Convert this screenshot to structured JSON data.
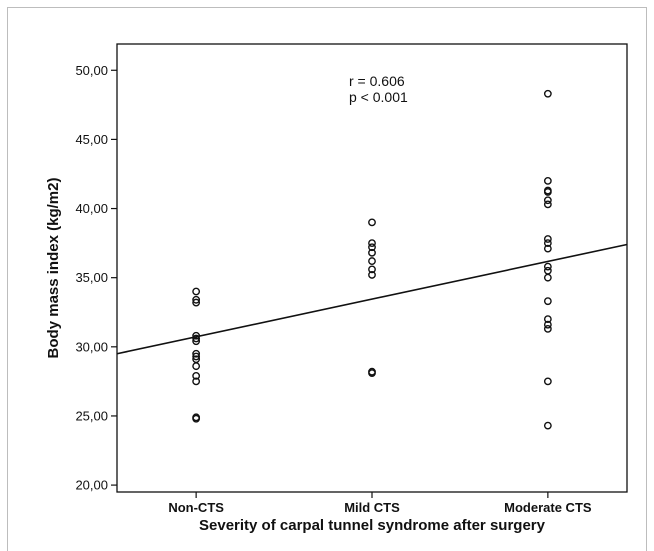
{
  "chart_data": {
    "type": "scatter",
    "xlabel": "Severity of carpal tunnel syndrome after surgery",
    "ylabel": "Body mass index (kg/m2)",
    "categories": [
      "Non-CTS",
      "Mild CTS",
      "Moderate CTS"
    ],
    "yticks": [
      "20,00",
      "25,00",
      "30,00",
      "35,00",
      "40,00",
      "45,00",
      "50,00"
    ],
    "ylim": [
      19.5,
      51.9
    ],
    "xlim": [
      0.55,
      3.45
    ],
    "grid": false,
    "annotations": [
      "r = 0.606",
      "p < 0.001"
    ],
    "points": [
      {
        "category": "Non-CTS",
        "x": 1,
        "y": 34.0
      },
      {
        "category": "Non-CTS",
        "x": 1,
        "y": 33.4
      },
      {
        "category": "Non-CTS",
        "x": 1,
        "y": 33.2
      },
      {
        "category": "Non-CTS",
        "x": 1,
        "y": 30.8
      },
      {
        "category": "Non-CTS",
        "x": 1,
        "y": 30.6
      },
      {
        "category": "Non-CTS",
        "x": 1,
        "y": 30.4
      },
      {
        "category": "Non-CTS",
        "x": 1,
        "y": 29.5
      },
      {
        "category": "Non-CTS",
        "x": 1,
        "y": 29.3
      },
      {
        "category": "Non-CTS",
        "x": 1,
        "y": 29.1
      },
      {
        "category": "Non-CTS",
        "x": 1,
        "y": 28.6
      },
      {
        "category": "Non-CTS",
        "x": 1,
        "y": 27.9
      },
      {
        "category": "Non-CTS",
        "x": 1,
        "y": 27.5
      },
      {
        "category": "Non-CTS",
        "x": 1,
        "y": 24.9
      },
      {
        "category": "Non-CTS",
        "x": 1,
        "y": 24.8
      },
      {
        "category": "Mild CTS",
        "x": 2,
        "y": 39.0
      },
      {
        "category": "Mild CTS",
        "x": 2,
        "y": 37.5
      },
      {
        "category": "Mild CTS",
        "x": 2,
        "y": 37.2
      },
      {
        "category": "Mild CTS",
        "x": 2,
        "y": 36.8
      },
      {
        "category": "Mild CTS",
        "x": 2,
        "y": 36.2
      },
      {
        "category": "Mild CTS",
        "x": 2,
        "y": 35.6
      },
      {
        "category": "Mild CTS",
        "x": 2,
        "y": 35.2
      },
      {
        "category": "Mild CTS",
        "x": 2,
        "y": 28.2
      },
      {
        "category": "Mild CTS",
        "x": 2,
        "y": 28.1
      },
      {
        "category": "Moderate CTS",
        "x": 3,
        "y": 48.3
      },
      {
        "category": "Moderate CTS",
        "x": 3,
        "y": 42.0
      },
      {
        "category": "Moderate CTS",
        "x": 3,
        "y": 41.3
      },
      {
        "category": "Moderate CTS",
        "x": 3,
        "y": 41.2
      },
      {
        "category": "Moderate CTS",
        "x": 3,
        "y": 40.6
      },
      {
        "category": "Moderate CTS",
        "x": 3,
        "y": 40.3
      },
      {
        "category": "Moderate CTS",
        "x": 3,
        "y": 37.8
      },
      {
        "category": "Moderate CTS",
        "x": 3,
        "y": 37.5
      },
      {
        "category": "Moderate CTS",
        "x": 3,
        "y": 37.1
      },
      {
        "category": "Moderate CTS",
        "x": 3,
        "y": 35.8
      },
      {
        "category": "Moderate CTS",
        "x": 3,
        "y": 35.5
      },
      {
        "category": "Moderate CTS",
        "x": 3,
        "y": 35.0
      },
      {
        "category": "Moderate CTS",
        "x": 3,
        "y": 33.3
      },
      {
        "category": "Moderate CTS",
        "x": 3,
        "y": 32.0
      },
      {
        "category": "Moderate CTS",
        "x": 3,
        "y": 31.6
      },
      {
        "category": "Moderate CTS",
        "x": 3,
        "y": 31.3
      },
      {
        "category": "Moderate CTS",
        "x": 3,
        "y": 27.5
      },
      {
        "category": "Moderate CTS",
        "x": 3,
        "y": 24.3
      }
    ],
    "regression_line": {
      "x": [
        0.55,
        3.45
      ],
      "y": [
        29.5,
        37.4
      ]
    }
  }
}
